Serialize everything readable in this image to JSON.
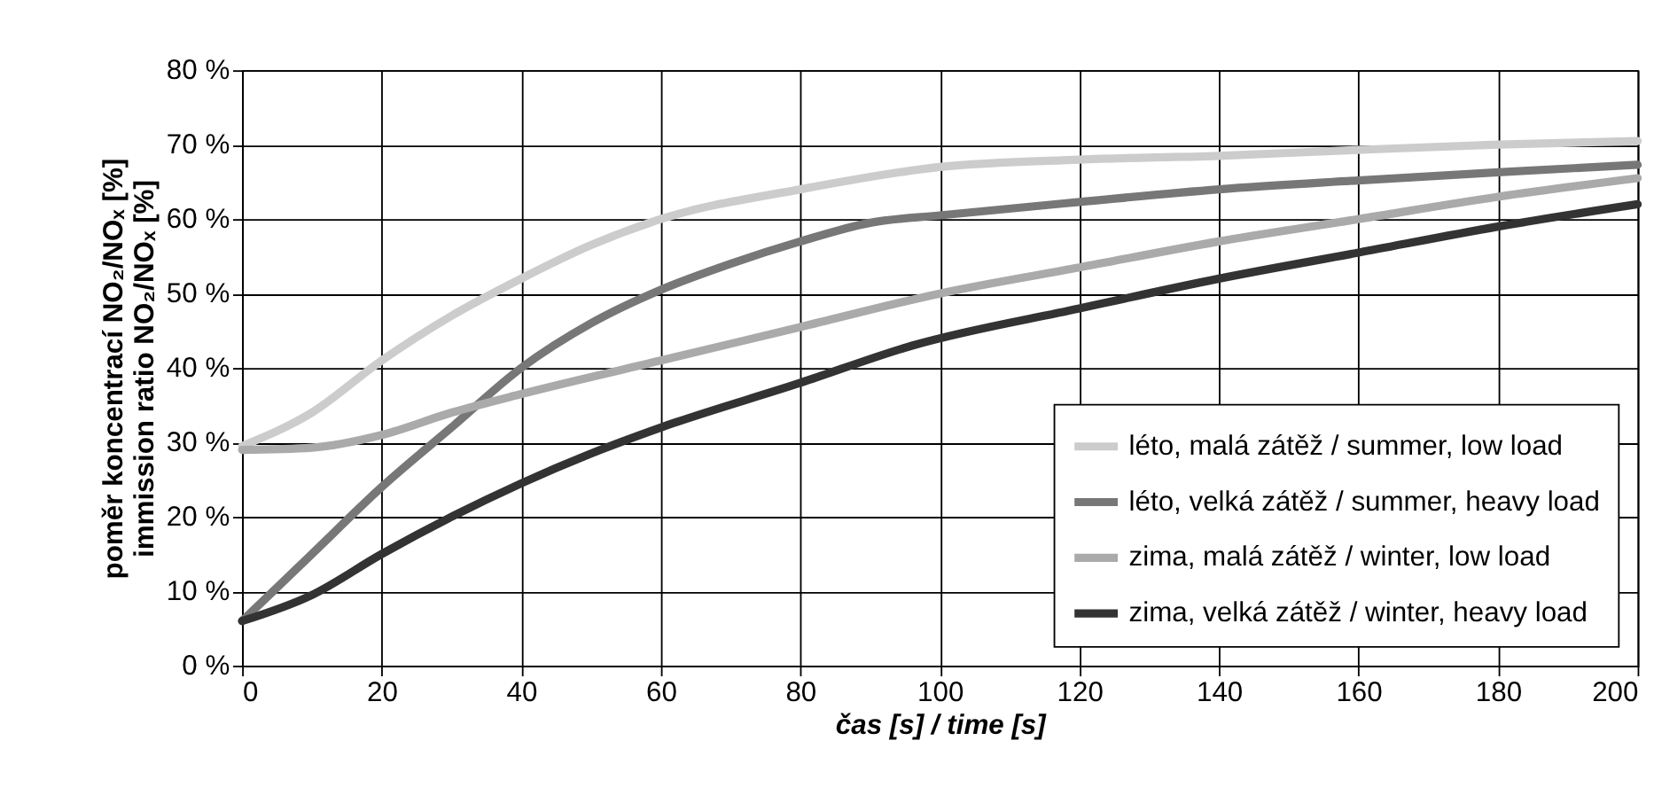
{
  "chart_data": {
    "type": "line",
    "xlabel": "čas [s] / time [s]",
    "ylabel": "poměr koncentrací NO₂/NOₓ [%]\nimmission ratio NO₂/NOₓ [%]",
    "xlim": [
      0,
      200
    ],
    "xticks": [
      0,
      20,
      40,
      60,
      80,
      100,
      120,
      140,
      160,
      180,
      200
    ],
    "ylim": [
      0,
      80
    ],
    "yticks": [
      {
        "value": 0,
        "label": "0 %"
      },
      {
        "value": 10,
        "label": "10 %"
      },
      {
        "value": 20,
        "label": "20 %"
      },
      {
        "value": 30,
        "label": "30 %"
      },
      {
        "value": 40,
        "label": "40 %"
      },
      {
        "value": 50,
        "label": "50 %"
      },
      {
        "value": 60,
        "label": "60 %"
      },
      {
        "value": 70,
        "label": "70 %"
      },
      {
        "value": 80,
        "label": "80 %"
      }
    ],
    "grid": true,
    "legend": "bottom right",
    "marker": "none",
    "line_style": "solid",
    "series": [
      {
        "name": "léto, malá zátěž / summer, low load",
        "color": "#cccccc",
        "x": [
          0,
          10,
          20,
          30,
          40,
          50,
          60,
          80,
          100,
          120,
          140,
          160,
          180,
          200
        ],
        "values": [
          29.5,
          34,
          41,
          47,
          52,
          56.5,
          60,
          64,
          67,
          68,
          68.5,
          69.3,
          70,
          70.5
        ]
      },
      {
        "name": "léto, velká zátěž / summer, heavy load",
        "color": "#777777",
        "x": [
          0,
          10,
          20,
          30,
          40,
          50,
          60,
          70,
          80,
          90,
          100,
          120,
          140,
          160,
          180,
          200
        ],
        "values": [
          6,
          15,
          24,
          32,
          40,
          46,
          50.5,
          54,
          57,
          59.5,
          60.5,
          62.3,
          64,
          65.2,
          66.3,
          67.3
        ]
      },
      {
        "name": "zima, malá zátěž / winter, low load",
        "color": "#aaaaaa",
        "x": [
          0,
          10,
          20,
          30,
          40,
          60,
          80,
          100,
          120,
          140,
          160,
          180,
          200
        ],
        "values": [
          29,
          29.3,
          31,
          34,
          36.5,
          41,
          45.5,
          50,
          53.5,
          57,
          60,
          63,
          65.5
        ]
      },
      {
        "name": "zima, velká zátěž / winter, heavy load",
        "color": "#333333",
        "x": [
          0,
          10,
          20,
          30,
          40,
          50,
          60,
          80,
          96,
          120,
          140,
          160,
          180,
          200
        ],
        "values": [
          6,
          9.5,
          15,
          20,
          24.5,
          28.5,
          32,
          38,
          43,
          48,
          52,
          55.5,
          59,
          62
        ]
      }
    ]
  }
}
